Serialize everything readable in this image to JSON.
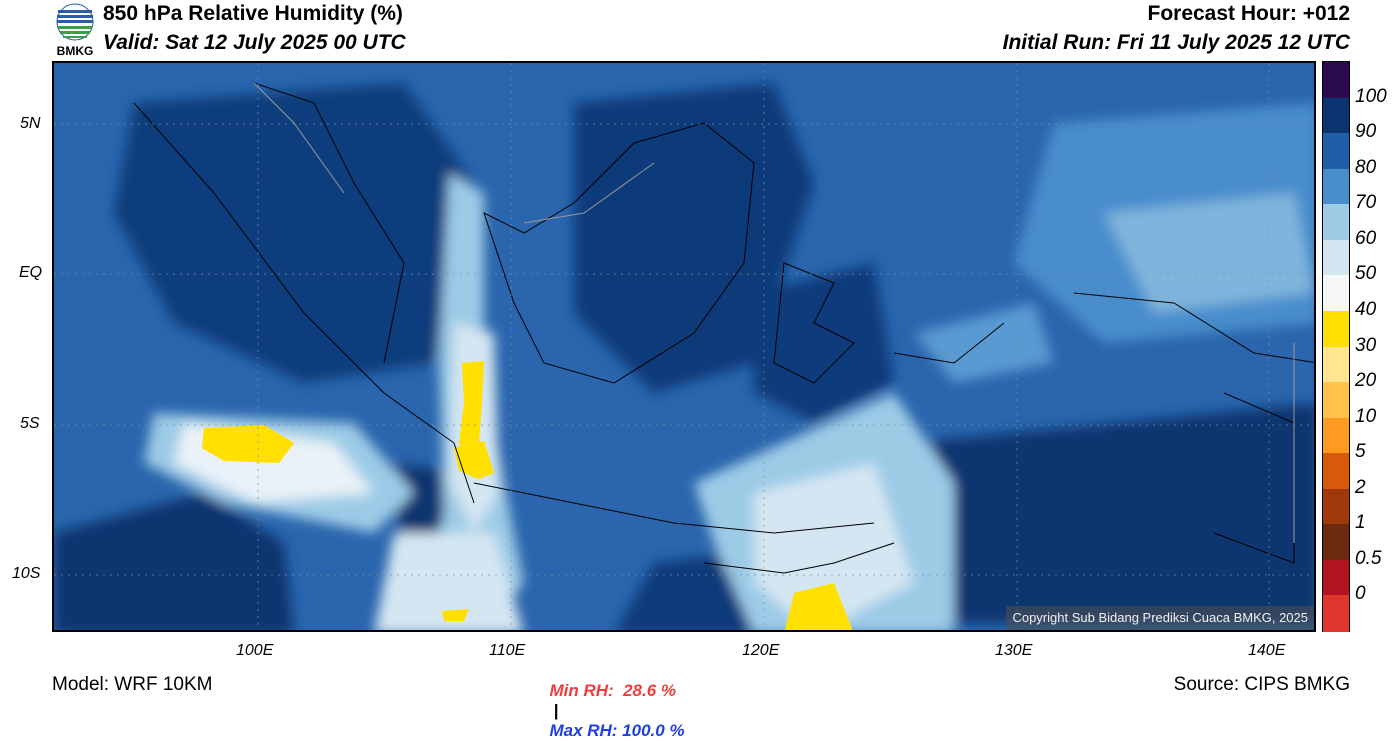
{
  "header": {
    "logo_text": "BMKG",
    "title": "850 hPa Relative Humidity (%)",
    "valid": "Valid: Sat 12 July 2025 00 UTC",
    "forecast_hour": "Forecast Hour: +012",
    "initial_run": "Initial Run: Fri 11 July 2025 12 UTC"
  },
  "map": {
    "lat_ticks": [
      "5N",
      "EQ",
      "5S",
      "10S"
    ],
    "lon_ticks": [
      "100E",
      "110E",
      "120E",
      "130E",
      "140E"
    ],
    "copyright": "Copyright Sub Bidang Prediksi Cuaca BMKG, 2025",
    "extent": {
      "lon_min": 92,
      "lon_max": 142,
      "lat_min": -12,
      "lat_max": 7
    }
  },
  "colorbar": {
    "labels": [
      "100",
      "90",
      "80",
      "70",
      "60",
      "50",
      "40",
      "30",
      "20",
      "10",
      "5",
      "2",
      "1",
      "0.5",
      "0"
    ],
    "colors": [
      "#2b0a4e",
      "#0b3570",
      "#1f5fa8",
      "#4a8dcc",
      "#9ccbe6",
      "#d4e6f2",
      "#f7f7f7",
      "#ffe000",
      "#ffe590",
      "#ffc24a",
      "#ff9a20",
      "#d75a0a",
      "#a0380c",
      "#6e2a10",
      "#b01520",
      "#e0362e"
    ]
  },
  "stats": {
    "min_label": "Min RH:  28.6 %",
    "separator": "|",
    "max_label": "Max RH: 100.0 %",
    "min_color": "#ee3d3d",
    "max_color": "#1f3fe0"
  },
  "footer": {
    "model": "Model: WRF 10KM",
    "source": "Source: CIPS BMKG"
  }
}
